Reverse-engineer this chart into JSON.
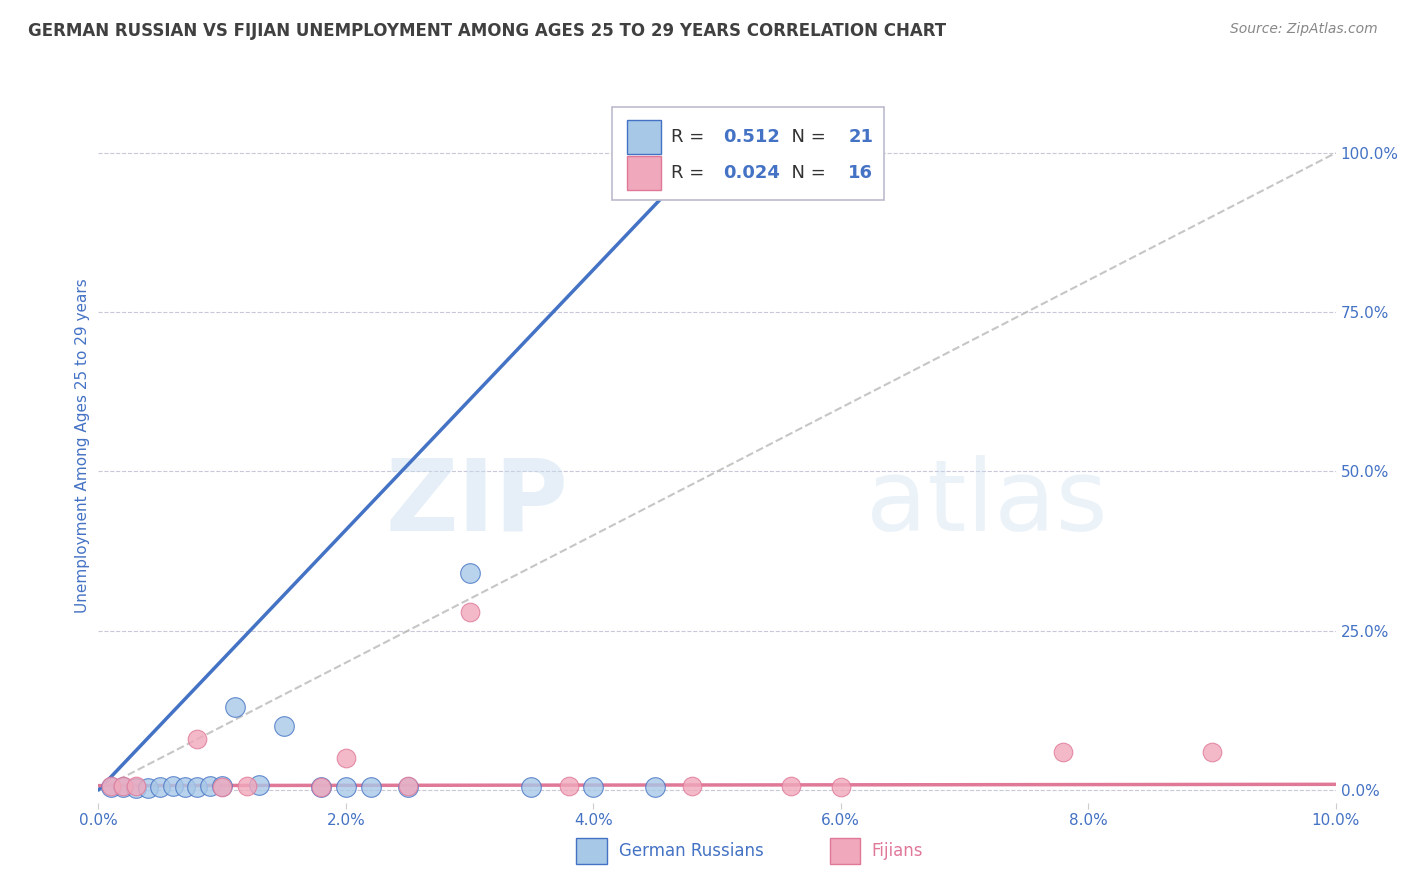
{
  "title": "GERMAN RUSSIAN VS FIJIAN UNEMPLOYMENT AMONG AGES 25 TO 29 YEARS CORRELATION CHART",
  "source": "Source: ZipAtlas.com",
  "xlabel_bottom": "German Russians",
  "xlabel_bottom2": "Fijians",
  "ylabel": "Unemployment Among Ages 25 to 29 years",
  "blue_R": 0.512,
  "blue_N": 21,
  "pink_R": 0.024,
  "pink_N": 16,
  "blue_color": "#a8c8e8",
  "pink_color": "#f0a8bc",
  "blue_line_color": "#4472c4",
  "pink_line_color": "#e07898",
  "ref_line_color": "#b8b8b8",
  "title_color": "#404040",
  "axis_label_color": "#4472c4",
  "legend_R_color": "#4472c4",
  "blue_scatter_x": [
    0.001,
    0.002,
    0.003,
    0.004,
    0.005,
    0.006,
    0.007,
    0.008,
    0.009,
    0.01,
    0.011,
    0.013,
    0.015,
    0.018,
    0.02,
    0.022,
    0.025,
    0.03,
    0.035,
    0.04,
    0.045
  ],
  "blue_scatter_y": [
    0.005,
    0.005,
    0.004,
    0.003,
    0.005,
    0.006,
    0.005,
    0.005,
    0.007,
    0.007,
    0.13,
    0.008,
    0.1,
    0.005,
    0.005,
    0.005,
    0.005,
    0.34,
    0.005,
    0.005,
    0.005
  ],
  "pink_scatter_x": [
    0.001,
    0.002,
    0.003,
    0.008,
    0.01,
    0.012,
    0.018,
    0.02,
    0.025,
    0.03,
    0.038,
    0.048,
    0.056,
    0.06,
    0.078,
    0.09
  ],
  "pink_scatter_y": [
    0.007,
    0.006,
    0.007,
    0.08,
    0.005,
    0.006,
    0.005,
    0.05,
    0.006,
    0.28,
    0.007,
    0.006,
    0.006,
    0.005,
    0.06,
    0.06
  ],
  "blue_line_x": [
    0.0,
    0.048
  ],
  "blue_line_y": [
    0.0,
    0.98
  ],
  "pink_line_x": [
    0.0,
    0.1
  ],
  "pink_line_y": [
    0.007,
    0.009
  ],
  "ref_line_x": [
    0.0,
    0.1
  ],
  "ref_line_y": [
    0.0,
    1.0
  ],
  "xlim": [
    0.0,
    0.1
  ],
  "ylim": [
    -0.02,
    1.1
  ],
  "xticks": [
    0.0,
    0.02,
    0.04,
    0.06,
    0.08,
    0.1
  ],
  "yticks": [
    0.0,
    0.25,
    0.5,
    0.75,
    1.0
  ],
  "watermark_zip": "ZIP",
  "watermark_atlas": "atlas",
  "background_color": "#ffffff",
  "grid_color": "#c8c8d8"
}
